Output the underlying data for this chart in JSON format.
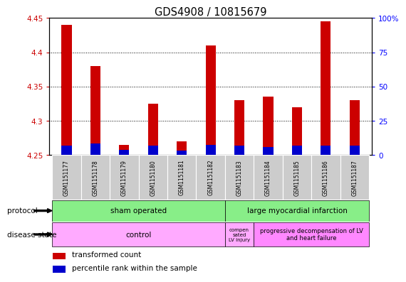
{
  "title": "GDS4908 / 10815679",
  "samples": [
    "GSM1151177",
    "GSM1151178",
    "GSM1151179",
    "GSM1151180",
    "GSM1151181",
    "GSM1151182",
    "GSM1151183",
    "GSM1151184",
    "GSM1151185",
    "GSM1151186",
    "GSM1151187"
  ],
  "transformed_count": [
    4.44,
    4.38,
    4.265,
    4.325,
    4.27,
    4.41,
    4.33,
    4.335,
    4.32,
    4.445,
    4.33
  ],
  "percentile_rank": [
    7.0,
    8.5,
    3.5,
    7.0,
    3.0,
    7.5,
    6.5,
    5.5,
    6.5,
    7.0,
    6.5
  ],
  "ylim_left": [
    4.25,
    4.45
  ],
  "ylim_right": [
    0,
    100
  ],
  "yticks_left": [
    4.25,
    4.3,
    4.35,
    4.4,
    4.45
  ],
  "yticks_right": [
    0,
    25,
    50,
    75,
    100
  ],
  "ytick_labels_right": [
    "0",
    "25",
    "50",
    "75",
    "100%"
  ],
  "base_value": 4.25,
  "bar_width": 0.35,
  "red_color": "#cc0000",
  "blue_color": "#0000cc",
  "legend_red": "transformed count",
  "legend_blue": "percentile rank within the sample",
  "plot_bg": "#ffffff",
  "label_bg": "#cccccc",
  "protocol_color": "#88ee88",
  "disease_control_color": "#ffaaff",
  "disease_prog_color": "#ff88ff",
  "percentile_scale_factor": 0.002
}
